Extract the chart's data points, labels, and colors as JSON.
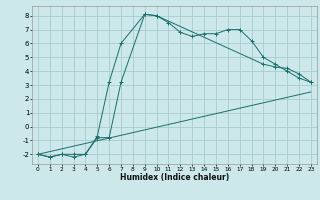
{
  "title": "",
  "xlabel": "Humidex (Indice chaleur)",
  "bg_color": "#cce8ea",
  "grid_color": "#aacccc",
  "line_color": "#1a6e6a",
  "xlim": [
    -0.5,
    23.5
  ],
  "ylim": [
    -2.7,
    8.7
  ],
  "yticks": [
    -2,
    -1,
    0,
    1,
    2,
    3,
    4,
    5,
    6,
    7,
    8
  ],
  "xticks": [
    0,
    1,
    2,
    3,
    4,
    5,
    6,
    7,
    8,
    9,
    10,
    11,
    12,
    13,
    14,
    15,
    16,
    17,
    18,
    19,
    20,
    21,
    22,
    23
  ],
  "line1_x": [
    0,
    1,
    2,
    3,
    4,
    5,
    6,
    7,
    9,
    10,
    11,
    12,
    13,
    14,
    15,
    16,
    17,
    18,
    19,
    20,
    21,
    22,
    23
  ],
  "line1_y": [
    -2,
    -2.2,
    -2,
    -2,
    -2,
    -0.7,
    3.2,
    6.0,
    8.1,
    8.0,
    7.5,
    6.8,
    6.5,
    6.7,
    6.7,
    7.0,
    7.0,
    6.2,
    5.0,
    4.5,
    4.0,
    3.5,
    3.2
  ],
  "line2_x": [
    0,
    1,
    2,
    3,
    4,
    5,
    6,
    7,
    9,
    10,
    19,
    20,
    21,
    22,
    23
  ],
  "line2_y": [
    -2,
    -2.2,
    -2,
    -2.2,
    -2,
    -0.8,
    -0.8,
    3.2,
    8.1,
    8.0,
    4.5,
    4.3,
    4.2,
    3.8,
    3.2
  ],
  "line3_x": [
    0,
    23
  ],
  "line3_y": [
    -2,
    2.5
  ]
}
